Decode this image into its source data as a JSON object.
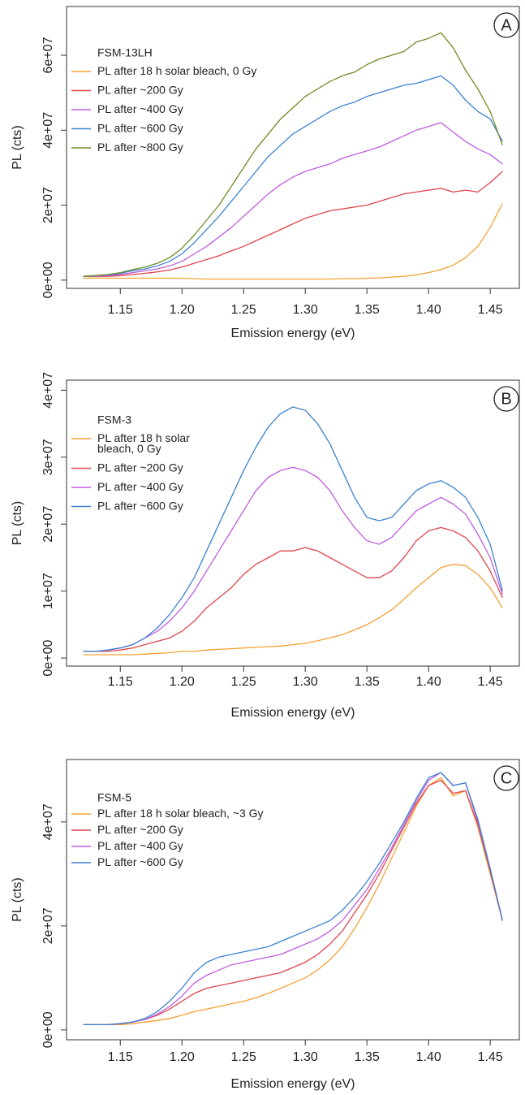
{
  "chart_data": [
    {
      "type": "line",
      "annotation": "A",
      "legend_title": "FSM-13LH",
      "xlabel": "Emission energy (eV)",
      "ylabel": "PL (cts)",
      "x": [
        1.12,
        1.13,
        1.14,
        1.15,
        1.16,
        1.17,
        1.18,
        1.19,
        1.2,
        1.21,
        1.22,
        1.23,
        1.24,
        1.25,
        1.26,
        1.27,
        1.28,
        1.29,
        1.3,
        1.31,
        1.32,
        1.33,
        1.34,
        1.35,
        1.36,
        1.37,
        1.38,
        1.39,
        1.4,
        1.41,
        1.42,
        1.43,
        1.44,
        1.45,
        1.46
      ],
      "xlim": [
        1.1064,
        1.4736
      ],
      "xticks": [
        1.15,
        {
          "value": 1.2,
          "label": "1.20"
        },
        1.25,
        {
          "value": 1.3,
          "label": "1.30"
        },
        1.35,
        {
          "value": 1.4,
          "label": "1.40"
        },
        1.45
      ],
      "ylim": [
        -2200000.0,
        73000000.0
      ],
      "yticks": [
        {
          "value": 0,
          "label": "0e+00"
        },
        {
          "value": 20000000.0,
          "label": "2e+07"
        },
        {
          "value": 40000000.0,
          "label": "4e+07"
        },
        {
          "value": 60000000.0,
          "label": "6e+07"
        }
      ],
      "series": [
        {
          "name": "PL after 18 h solar bleach, 0 Gy",
          "color": "#f5a033",
          "values": [
            500000.0,
            600000.0,
            500000.0,
            500000.0,
            500000.0,
            500000.0,
            500000.0,
            500000.0,
            500000.0,
            400000.0,
            300000.0,
            300000.0,
            300000.0,
            300000.0,
            300000.0,
            300000.0,
            300000.0,
            300000.0,
            300000.0,
            300000.0,
            300000.0,
            400000.0,
            400000.0,
            500000.0,
            600000.0,
            800000.0,
            1000000.0,
            1400000.0,
            2000000.0,
            2800000.0,
            4000000.0,
            6000000.0,
            9000000.0,
            14000000.0,
            20500000.0
          ]
        },
        {
          "name": "PL after ~200 Gy",
          "color": "#e0454a",
          "values": [
            1000000.0,
            1000000.0,
            1000000.0,
            1200000.0,
            1500000.0,
            1800000.0,
            2200000.0,
            2700000.0,
            3500000.0,
            4500000.0,
            5500000.0,
            6500000.0,
            7800000.0,
            9000000.0,
            10500000.0,
            12000000.0,
            13500000.0,
            15000000.0,
            16500000.0,
            17500000.0,
            18500000.0,
            19000000.0,
            19500000.0,
            20000000.0,
            21000000.0,
            22000000.0,
            23000000.0,
            23500000.0,
            24000000.0,
            24500000.0,
            23500000.0,
            24000000.0,
            23500000.0,
            26000000.0,
            29000000.0
          ]
        },
        {
          "name": "PL after ~400 Gy",
          "color": "#c05ce0",
          "values": [
            1000000.0,
            1000000.0,
            1200000.0,
            1500000.0,
            2000000.0,
            2500000.0,
            3000000.0,
            3800000.0,
            5000000.0,
            7000000.0,
            9000000.0,
            11500000.0,
            14000000.0,
            17000000.0,
            20000000.0,
            23000000.0,
            25500000.0,
            27500000.0,
            29000000.0,
            30000000.0,
            31000000.0,
            32500000.0,
            33500000.0,
            34500000.0,
            35500000.0,
            37000000.0,
            38500000.0,
            40000000.0,
            41000000.0,
            42000000.0,
            39500000.0,
            37000000.0,
            35000000.0,
            33500000.0,
            31000000.0
          ]
        },
        {
          "name": "PL after ~600 Gy",
          "color": "#3a82d0",
          "values": [
            1000000.0,
            1200000.0,
            1400000.0,
            1800000.0,
            2500000.0,
            3000000.0,
            3800000.0,
            5000000.0,
            7000000.0,
            10000000.0,
            13500000.0,
            17000000.0,
            21000000.0,
            25000000.0,
            29000000.0,
            33000000.0,
            36000000.0,
            39000000.0,
            41000000.0,
            43000000.0,
            45000000.0,
            46500000.0,
            47500000.0,
            49000000.0,
            50000000.0,
            51000000.0,
            52000000.0,
            52500000.0,
            53500000.0,
            54500000.0,
            52000000.0,
            48000000.0,
            45000000.0,
            43000000.0,
            37000000.0
          ]
        },
        {
          "name": "PL after ~800 Gy",
          "color": "#6b8e23",
          "values": [
            1000000.0,
            1200000.0,
            1500000.0,
            2000000.0,
            2800000.0,
            3500000.0,
            4500000.0,
            6000000.0,
            8500000.0,
            12000000.0,
            16000000.0,
            20000000.0,
            25000000.0,
            30000000.0,
            35000000.0,
            39000000.0,
            43000000.0,
            46000000.0,
            49000000.0,
            51000000.0,
            53000000.0,
            54500000.0,
            55500000.0,
            57500000.0,
            59000000.0,
            60000000.0,
            61000000.0,
            63500000.0,
            64500000.0,
            66000000.0,
            62000000.0,
            56000000.0,
            51000000.0,
            45000000.0,
            36000000.0
          ]
        }
      ]
    },
    {
      "type": "line",
      "annotation": "B",
      "legend_title": "FSM-3",
      "xlabel": "Emission energy (eV)",
      "ylabel": "PL (cts)",
      "x": [
        1.12,
        1.13,
        1.14,
        1.15,
        1.16,
        1.17,
        1.18,
        1.19,
        1.2,
        1.21,
        1.22,
        1.23,
        1.24,
        1.25,
        1.26,
        1.27,
        1.28,
        1.29,
        1.3,
        1.31,
        1.32,
        1.33,
        1.34,
        1.35,
        1.36,
        1.37,
        1.38,
        1.39,
        1.4,
        1.41,
        1.42,
        1.43,
        1.44,
        1.45,
        1.46
      ],
      "xlim": [
        1.1064,
        1.4736
      ],
      "xticks": [
        1.15,
        {
          "value": 1.2,
          "label": "1.20"
        },
        1.25,
        {
          "value": 1.3,
          "label": "1.30"
        },
        1.35,
        {
          "value": 1.4,
          "label": "1.40"
        },
        1.45
      ],
      "ylim": [
        -1200000.0,
        41500000.0
      ],
      "yticks": [
        {
          "value": 0,
          "label": "0e+00"
        },
        {
          "value": 10000000.0,
          "label": "1e+07"
        },
        {
          "value": 20000000.0,
          "label": "2e+07"
        },
        {
          "value": 30000000.0,
          "label": "3e+07"
        },
        {
          "value": 40000000.0,
          "label": "4e+07"
        }
      ],
      "series": [
        {
          "name": "PL after 18 h solar\nbleach, 0 Gy",
          "color": "#f5a033",
          "values": [
            500000.0,
            500000.0,
            500000.0,
            500000.0,
            500000.0,
            600000.0,
            700000.0,
            800000.0,
            1000000.0,
            1000000.0,
            1200000.0,
            1300000.0,
            1400000.0,
            1500000.0,
            1600000.0,
            1700000.0,
            1800000.0,
            2000000.0,
            2200000.0,
            2600000.0,
            3000000.0,
            3500000.0,
            4200000.0,
            5000000.0,
            6000000.0,
            7200000.0,
            8800000.0,
            10500000.0,
            12000000.0,
            13500000.0,
            14000000.0,
            13800000.0,
            12500000.0,
            10500000.0,
            7500000.0
          ]
        },
        {
          "name": "PL after ~200 Gy",
          "color": "#e0454a",
          "values": [
            1000000.0,
            1000000.0,
            1000000.0,
            1200000.0,
            1500000.0,
            2000000.0,
            2500000.0,
            3000000.0,
            4000000.0,
            5500000.0,
            7500000.0,
            9000000.0,
            10500000.0,
            12500000.0,
            14000000.0,
            15000000.0,
            16000000.0,
            16000000.0,
            16500000.0,
            16000000.0,
            15000000.0,
            14000000.0,
            13000000.0,
            12000000.0,
            12000000.0,
            13000000.0,
            15000000.0,
            17500000.0,
            19000000.0,
            19500000.0,
            19000000.0,
            18000000.0,
            16000000.0,
            13000000.0,
            9000000.0
          ]
        },
        {
          "name": "PL after ~400 Gy",
          "color": "#c05ce0",
          "values": [
            1000000.0,
            1000000.0,
            1200000.0,
            1500000.0,
            2000000.0,
            3000000.0,
            4000000.0,
            5500000.0,
            7500000.0,
            10000000.0,
            13000000.0,
            16000000.0,
            19000000.0,
            22000000.0,
            25000000.0,
            27000000.0,
            28000000.0,
            28500000.0,
            28000000.0,
            27000000.0,
            25000000.0,
            22000000.0,
            19500000.0,
            17500000.0,
            17000000.0,
            18000000.0,
            20000000.0,
            22000000.0,
            23000000.0,
            24000000.0,
            23000000.0,
            21500000.0,
            18500000.0,
            15000000.0,
            9500000.0
          ]
        },
        {
          "name": "PL after ~600 Gy",
          "color": "#3a82d0",
          "values": [
            1000000.0,
            1000000.0,
            1200000.0,
            1500000.0,
            2000000.0,
            3000000.0,
            4500000.0,
            6500000.0,
            9000000.0,
            12000000.0,
            16000000.0,
            20000000.0,
            24000000.0,
            28000000.0,
            31500000.0,
            34500000.0,
            36500000.0,
            37500000.0,
            37000000.0,
            35000000.0,
            32000000.0,
            28000000.0,
            24000000.0,
            21000000.0,
            20500000.0,
            21000000.0,
            23000000.0,
            25000000.0,
            26000000.0,
            26500000.0,
            25500000.0,
            24000000.0,
            21000000.0,
            17000000.0,
            10000000.0
          ]
        }
      ]
    },
    {
      "type": "line",
      "annotation": "C",
      "legend_title": "FSM-5",
      "xlabel": "Emission energy (eV)",
      "ylabel": "PL (cts)",
      "x": [
        1.12,
        1.13,
        1.14,
        1.15,
        1.16,
        1.17,
        1.18,
        1.19,
        1.2,
        1.21,
        1.22,
        1.23,
        1.24,
        1.25,
        1.26,
        1.27,
        1.28,
        1.29,
        1.3,
        1.31,
        1.32,
        1.33,
        1.34,
        1.35,
        1.36,
        1.37,
        1.38,
        1.39,
        1.4,
        1.41,
        1.42,
        1.43,
        1.44,
        1.45,
        1.46
      ],
      "xlim": [
        1.1064,
        1.4736
      ],
      "xticks": [
        1.15,
        {
          "value": 1.2,
          "label": "1.20"
        },
        1.25,
        {
          "value": 1.3,
          "label": "1.30"
        },
        1.35,
        {
          "value": 1.4,
          "label": "1.40"
        },
        1.45
      ],
      "ylim": [
        -1900000.0,
        52000000.0
      ],
      "yticks": [
        {
          "value": 0,
          "label": "0e+00"
        },
        {
          "value": 20000000.0,
          "label": "2e+07"
        },
        {
          "value": 40000000.0,
          "label": "4e+07"
        }
      ],
      "series": [
        {
          "name": "PL after 18 h solar bleach, ~3 Gy",
          "color": "#f5a033",
          "values": [
            1000000.0,
            1000000.0,
            1000000.0,
            1000000.0,
            1200000.0,
            1500000.0,
            1800000.0,
            2200000.0,
            2800000.0,
            3500000.0,
            4000000.0,
            4500000.0,
            5000000.0,
            5500000.0,
            6200000.0,
            7000000.0,
            8000000.0,
            9000000.0,
            10000000.0,
            11500000.0,
            13500000.0,
            16000000.0,
            19500000.0,
            23500000.0,
            28000000.0,
            33000000.0,
            38000000.0,
            43000000.0,
            47000000.0,
            48500000.0,
            45000000.0,
            46000000.0,
            39000000.0,
            30000000.0,
            21000000.0
          ]
        },
        {
          "name": "PL after ~200 Gy",
          "color": "#e0454a",
          "values": [
            1000000.0,
            1000000.0,
            1000000.0,
            1200000.0,
            1500000.0,
            2000000.0,
            2800000.0,
            4000000.0,
            5500000.0,
            7000000.0,
            8000000.0,
            8500000.0,
            9000000.0,
            9500000.0,
            10000000.0,
            10500000.0,
            11000000.0,
            12000000.0,
            13000000.0,
            14500000.0,
            16500000.0,
            19000000.0,
            22500000.0,
            26000000.0,
            30000000.0,
            34500000.0,
            39000000.0,
            43500000.0,
            47000000.0,
            48000000.0,
            45500000.0,
            46000000.0,
            39500000.0,
            30500000.0,
            21000000.0
          ]
        },
        {
          "name": "PL after ~400 Gy",
          "color": "#c05ce0",
          "values": [
            1000000.0,
            1000000.0,
            1000000.0,
            1200000.0,
            1500000.0,
            2000000.0,
            3000000.0,
            4500000.0,
            6500000.0,
            9000000.0,
            10500000.0,
            11500000.0,
            12500000.0,
            13000000.0,
            13500000.0,
            14000000.0,
            14500000.0,
            15500000.0,
            16500000.0,
            17500000.0,
            19000000.0,
            21000000.0,
            24000000.0,
            27000000.0,
            31000000.0,
            35000000.0,
            39500000.0,
            44000000.0,
            48000000.0,
            49500000.0,
            47000000.0,
            47500000.0,
            40000000.0,
            31000000.0,
            21000000.0
          ]
        },
        {
          "name": "PL after ~600 Gy",
          "color": "#3a82d0",
          "values": [
            1000000.0,
            1000000.0,
            1000000.0,
            1200000.0,
            1500000.0,
            2200000.0,
            3500000.0,
            5500000.0,
            8000000.0,
            11000000.0,
            13000000.0,
            14000000.0,
            14500000.0,
            15000000.0,
            15500000.0,
            16000000.0,
            17000000.0,
            18000000.0,
            19000000.0,
            20000000.0,
            21000000.0,
            23000000.0,
            25500000.0,
            28500000.0,
            32000000.0,
            36000000.0,
            40000000.0,
            44500000.0,
            48500000.0,
            49500000.0,
            47000000.0,
            47500000.0,
            40500000.0,
            31000000.0,
            21000000.0
          ]
        }
      ]
    }
  ]
}
